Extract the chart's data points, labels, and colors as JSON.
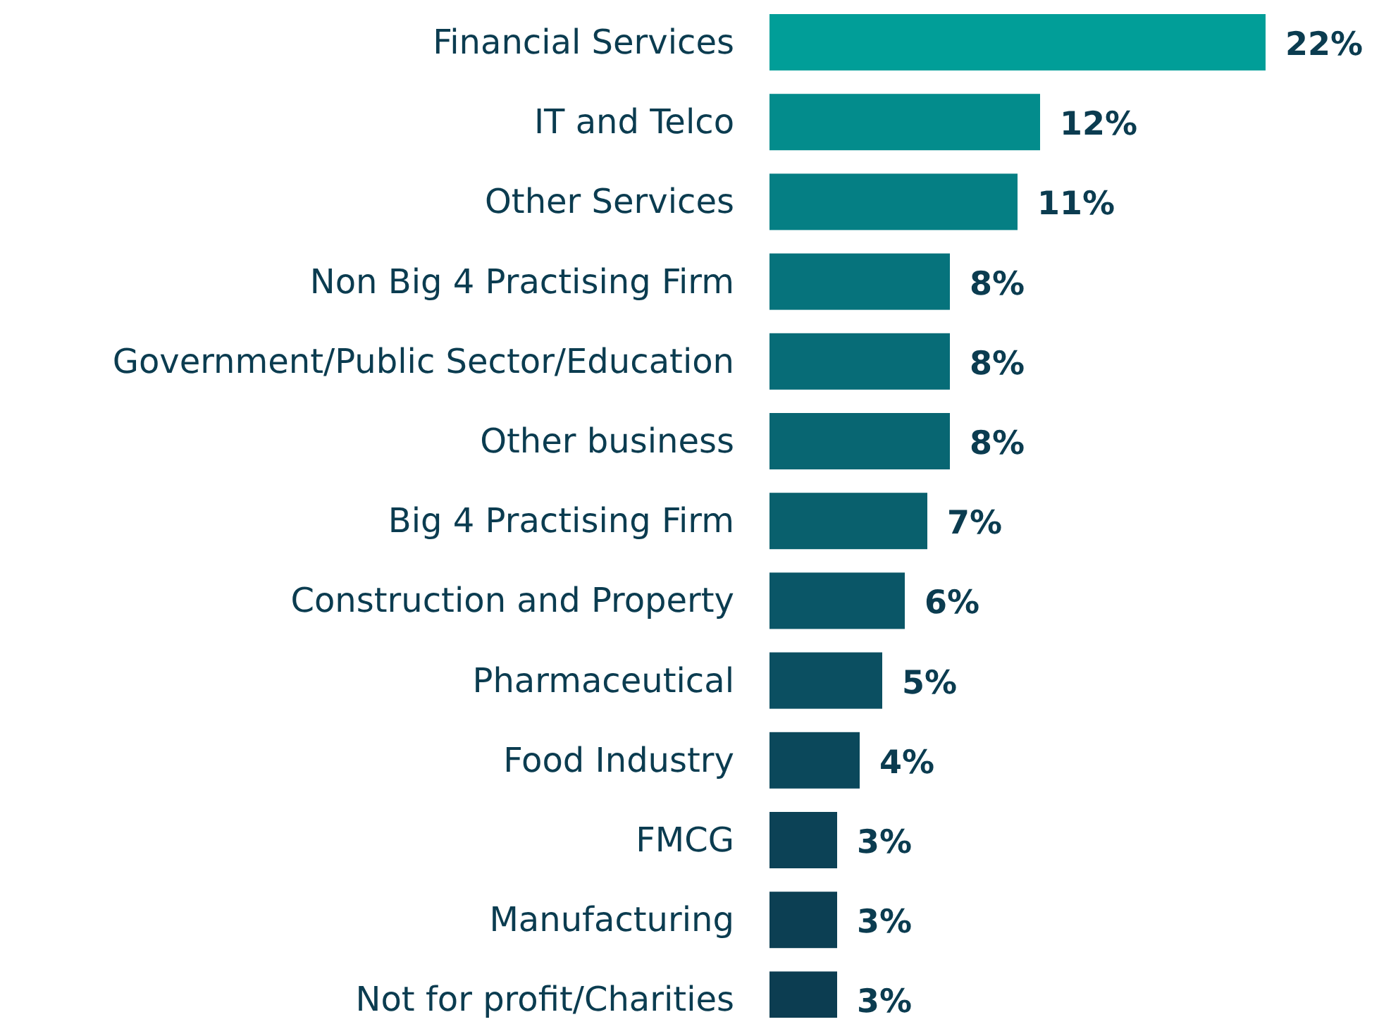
{
  "chart_data": {
    "type": "bar",
    "orientation": "horizontal",
    "value_labels": [
      "22%",
      "12%",
      "11%",
      "8%",
      "8%",
      "8%",
      "7%",
      "6%",
      "5%",
      "4%",
      "3%",
      "3%",
      "3%"
    ],
    "categories": [
      "Financial Services",
      "IT and Telco",
      "Other Services",
      "Non Big 4 Practising Firm",
      "Government/Public Sector/Education",
      "Other business",
      "Big 4 Practising Firm",
      "Construction and Property",
      "Pharmaceutical",
      "Food Industry",
      "FMCG",
      "Manufacturing",
      "Not for profit/Charities"
    ],
    "values": [
      22,
      12,
      11,
      8,
      8,
      8,
      7,
      6,
      5,
      4,
      3,
      3,
      3
    ],
    "colors": [
      "#019e98",
      "#038c8c",
      "#057f84",
      "#06737c",
      "#076c77",
      "#086672",
      "#09606d",
      "#0a5667",
      "#0b4f61",
      "#0b485b",
      "#0c4256",
      "#0c3f53",
      "#0c3d51"
    ]
  }
}
